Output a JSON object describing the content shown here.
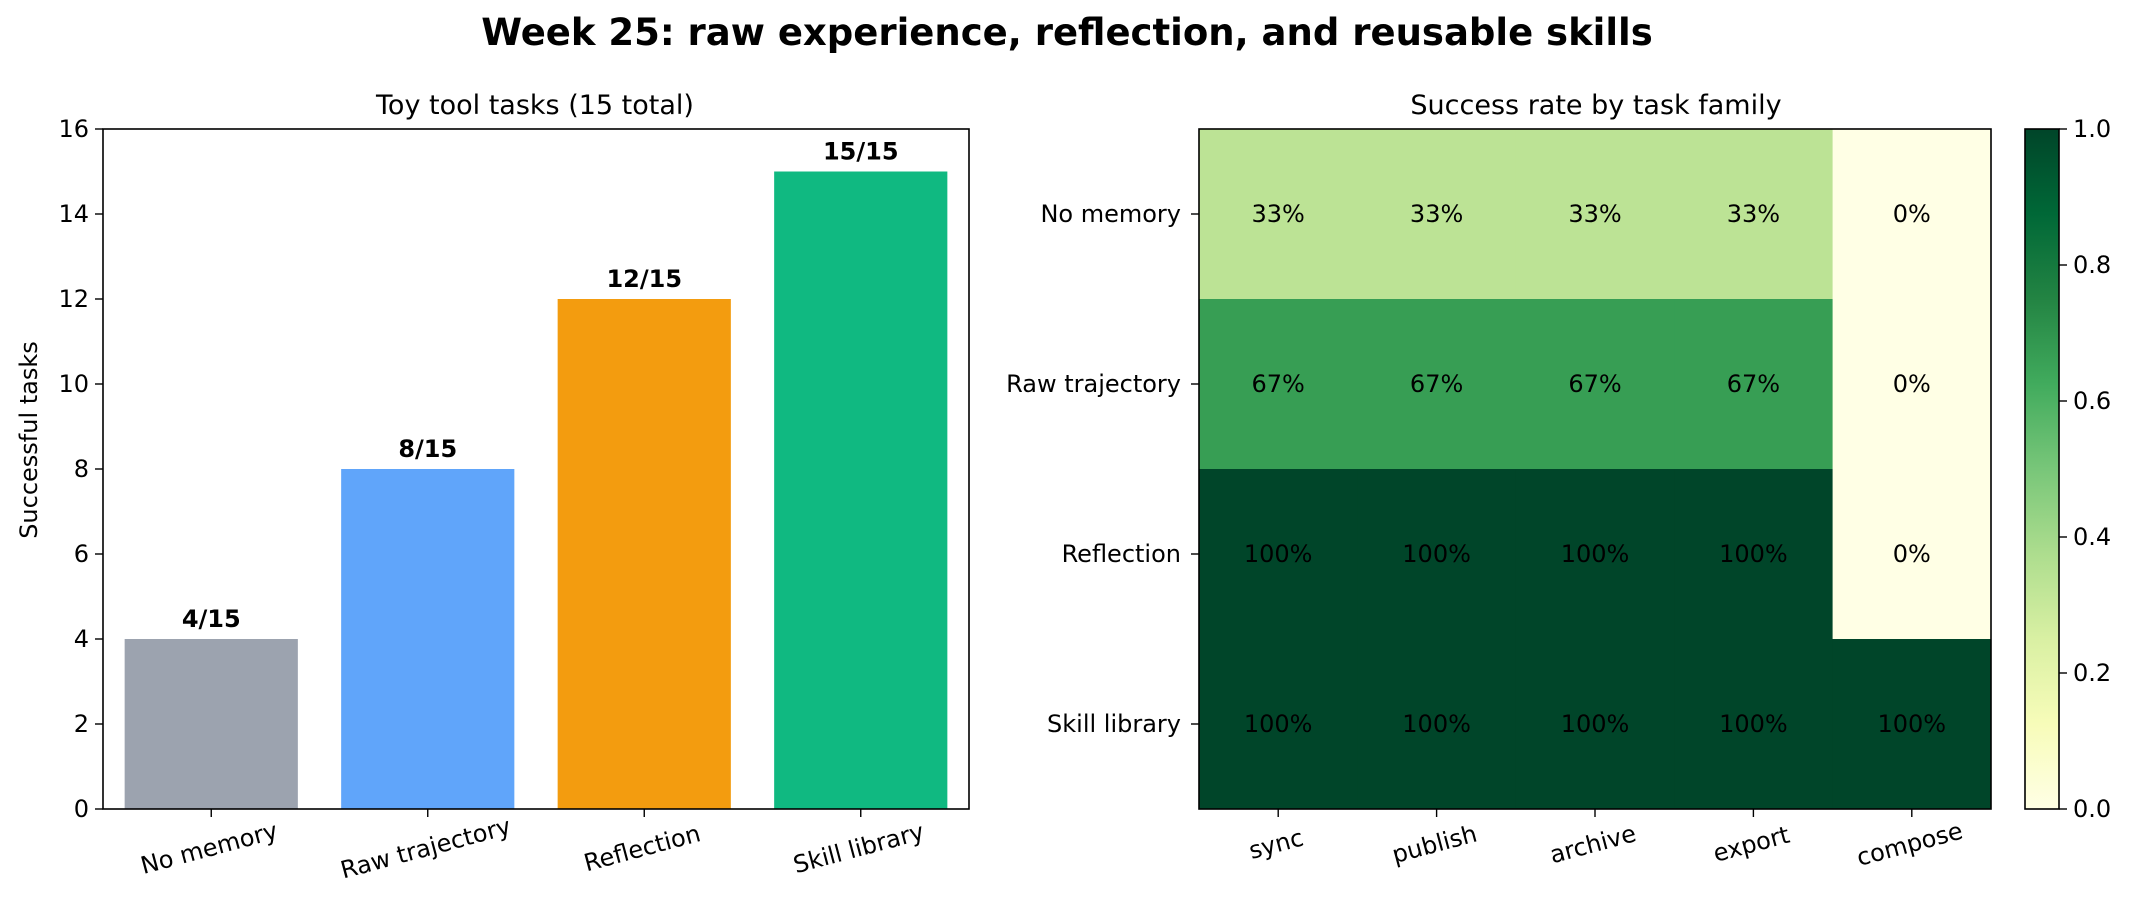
{
  "figure": {
    "title": "Week 25: raw experience, reflection, and reusable skills"
  },
  "chart_data": [
    {
      "type": "bar",
      "title": "Toy tool tasks (15 total)",
      "xlabel": "",
      "ylabel": "Successful tasks",
      "ylim": [
        0,
        16
      ],
      "yticks": [
        0,
        2,
        4,
        6,
        8,
        10,
        12,
        14,
        16
      ],
      "grid": false,
      "legend": "none",
      "categories": [
        "No memory",
        "Raw trajectory",
        "Reflection",
        "Skill library"
      ],
      "values": [
        4,
        8,
        12,
        15
      ],
      "data_labels": [
        "4/15",
        "8/15",
        "12/15",
        "15/15"
      ],
      "colors": [
        "#9ca3af",
        "#60a5fa",
        "#f39c0f",
        "#10b981"
      ]
    },
    {
      "type": "heatmap",
      "title": "Success rate by task family",
      "x_categories": [
        "sync",
        "publish",
        "archive",
        "export",
        "compose"
      ],
      "y_categories": [
        "No memory",
        "Raw trajectory",
        "Reflection",
        "Skill library"
      ],
      "values": [
        [
          0.333,
          0.333,
          0.333,
          0.333,
          0.0
        ],
        [
          0.667,
          0.667,
          0.667,
          0.667,
          0.0
        ],
        [
          1.0,
          1.0,
          1.0,
          1.0,
          0.0
        ],
        [
          1.0,
          1.0,
          1.0,
          1.0,
          1.0
        ]
      ],
      "cell_labels": [
        [
          "33%",
          "33%",
          "33%",
          "33%",
          "0%"
        ],
        [
          "67%",
          "67%",
          "67%",
          "67%",
          "0%"
        ],
        [
          "100%",
          "100%",
          "100%",
          "100%",
          "0%"
        ],
        [
          "100%",
          "100%",
          "100%",
          "100%",
          "100%"
        ]
      ],
      "colorscale": "Greens",
      "colorbar": {
        "range": [
          0,
          1
        ],
        "ticks": [
          0.0,
          0.2,
          0.4,
          0.6,
          0.8,
          1.0
        ],
        "tick_labels": [
          "0.0",
          "0.2",
          "0.4",
          "0.6",
          "0.8",
          "1.0"
        ]
      }
    }
  ]
}
